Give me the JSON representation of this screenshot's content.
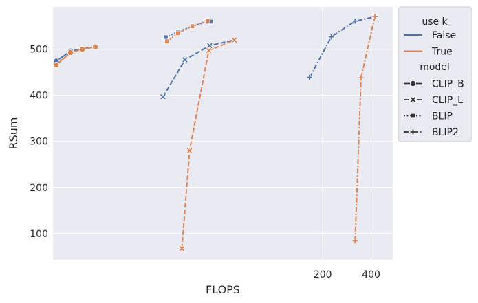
{
  "chart_data": {
    "type": "line",
    "xlabel": "FLOPS",
    "ylabel": "RSum",
    "x_scale": "log",
    "xlim": [
      4.2,
      545
    ],
    "ylim": [
      43,
      592
    ],
    "x_ticks": [
      200,
      400
    ],
    "y_ticks": [
      100,
      200,
      300,
      400,
      500
    ],
    "grid": true,
    "legend_placement": "outside-right",
    "hue": {
      "title": "use k",
      "levels": [
        {
          "name": "False",
          "color": "#4c72b0"
        },
        {
          "name": "True",
          "color": "#dd8452"
        }
      ]
    },
    "style": {
      "title": "model",
      "levels": [
        {
          "name": "CLIP_B",
          "dash": "solid",
          "marker": "circle"
        },
        {
          "name": "CLIP_L",
          "dash": "dashed",
          "marker": "x"
        },
        {
          "name": "BLIP",
          "dash": "dotted",
          "marker": "square"
        },
        {
          "name": "BLIP2",
          "dash": "dashdot",
          "marker": "plus"
        }
      ]
    },
    "series": [
      {
        "use_k": "False",
        "model": "CLIP_B",
        "x": [
          4.4,
          5.4,
          6.4,
          7.7
        ],
        "y": [
          474,
          496,
          501,
          505
        ]
      },
      {
        "use_k": "True",
        "model": "CLIP_B",
        "x": [
          4.4,
          5.4,
          6.4,
          7.7
        ],
        "y": [
          466,
          493,
          500,
          505
        ]
      },
      {
        "use_k": "False",
        "model": "CLIP_L",
        "x": [
          20.3,
          27.8,
          39.6,
          56.3
        ],
        "y": [
          397,
          477,
          508,
          520
        ]
      },
      {
        "use_k": "True",
        "model": "CLIP_L",
        "x": [
          26.6,
          29.7,
          39.1,
          56.3
        ],
        "y": [
          67,
          280,
          497,
          520
        ]
      },
      {
        "use_k": "False",
        "model": "BLIP",
        "x": [
          21.1,
          25.2,
          30.9,
          38.4,
          40.5
        ],
        "y": [
          526,
          538,
          550,
          560,
          560
        ]
      },
      {
        "use_k": "True",
        "model": "BLIP",
        "x": [
          21.5,
          25.2,
          30.9,
          38.4
        ],
        "y": [
          517,
          535,
          550,
          562
        ]
      },
      {
        "use_k": "False",
        "model": "BLIP2",
        "x": [
          166,
          226,
          318,
          427
        ],
        "y": [
          439,
          527,
          561,
          571
        ]
      },
      {
        "use_k": "True",
        "model": "BLIP2",
        "x": [
          318,
          346,
          422
        ],
        "y": [
          84,
          438,
          571
        ]
      }
    ]
  }
}
